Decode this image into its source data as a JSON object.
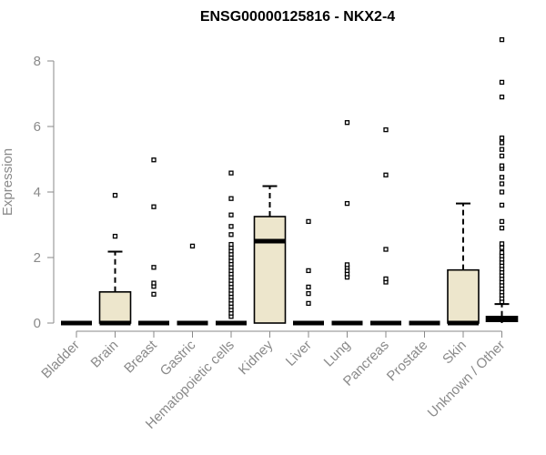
{
  "chart_data": {
    "type": "box",
    "title": "ENSG00000125816 - NKX2-4",
    "xlabel": "",
    "ylabel": "Expression",
    "ylim": [
      0,
      8.6
    ],
    "yticks": [
      0,
      2,
      4,
      6,
      8
    ],
    "categories": [
      "Bladder",
      "Brain",
      "Breast",
      "Gastric",
      "Hematopoietic cells",
      "Kidney",
      "Liver",
      "Lung",
      "Pancreas",
      "Prostate",
      "Skin",
      "Unknown / Other"
    ],
    "boxes": [
      {
        "q1": 0,
        "median": 0,
        "q3": 0,
        "whisker_low": 0,
        "whisker_high": 0,
        "outliers": []
      },
      {
        "q1": 0,
        "median": 0,
        "q3": 0.95,
        "whisker_low": 0,
        "whisker_high": 2.18,
        "outliers": [
          2.65,
          3.9
        ]
      },
      {
        "q1": 0,
        "median": 0,
        "q3": 0,
        "whisker_low": 0,
        "whisker_high": 0,
        "outliers": [
          0.88,
          1.12,
          1.22,
          1.7,
          3.55,
          4.98
        ]
      },
      {
        "q1": 0,
        "median": 0,
        "q3": 0,
        "whisker_low": 0,
        "whisker_high": 0,
        "outliers": [
          2.35
        ]
      },
      {
        "q1": 0,
        "median": 0,
        "q3": 0,
        "whisker_low": 0,
        "whisker_high": 0,
        "outliers": [
          0.2,
          0.3,
          0.4,
          0.5,
          0.6,
          0.7,
          0.8,
          0.9,
          1.0,
          1.1,
          1.2,
          1.3,
          1.4,
          1.5,
          1.6,
          1.7,
          1.8,
          1.9,
          2.0,
          2.1,
          2.2,
          2.3,
          2.4,
          2.7,
          2.95,
          3.3,
          3.8,
          4.58
        ]
      },
      {
        "q1": 0,
        "median": 2.5,
        "q3": 3.25,
        "whisker_low": 0,
        "whisker_high": 4.18,
        "outliers": []
      },
      {
        "q1": 0,
        "median": 0,
        "q3": 0,
        "whisker_low": 0,
        "whisker_high": 0,
        "outliers": [
          0.6,
          0.9,
          1.1,
          1.6,
          3.1
        ]
      },
      {
        "q1": 0,
        "median": 0,
        "q3": 0,
        "whisker_low": 0,
        "whisker_high": 0,
        "outliers": [
          1.4,
          1.5,
          1.6,
          1.7,
          1.78,
          3.65,
          6.12
        ]
      },
      {
        "q1": 0,
        "median": 0,
        "q3": 0,
        "whisker_low": 0,
        "whisker_high": 0,
        "outliers": [
          1.25,
          1.35,
          2.25,
          4.52,
          5.9
        ]
      },
      {
        "q1": 0,
        "median": 0,
        "q3": 0,
        "whisker_low": 0,
        "whisker_high": 0,
        "outliers": []
      },
      {
        "q1": 0,
        "median": 0,
        "q3": 1.62,
        "whisker_low": 0,
        "whisker_high": 3.65,
        "outliers": []
      },
      {
        "q1": 0.05,
        "median": 0.12,
        "q3": 0.2,
        "whisker_low": 0,
        "whisker_high": 0.58,
        "outliers": [
          0.65,
          0.75,
          0.85,
          0.95,
          1.05,
          1.15,
          1.25,
          1.35,
          1.45,
          1.55,
          1.65,
          1.75,
          1.85,
          1.95,
          2.05,
          2.15,
          2.3,
          2.42,
          2.9,
          3.1,
          3.6,
          4.0,
          4.25,
          4.45,
          4.72,
          4.8,
          5.1,
          5.3,
          5.5,
          5.65,
          6.9,
          7.35,
          8.65
        ]
      }
    ],
    "colors": {
      "box_fill": "#ede6cc",
      "box_stroke": "#000000",
      "axis": "#8a8a8a",
      "text": "#8a8a8a",
      "title": "#000000"
    },
    "grid": false,
    "legend": "none"
  }
}
